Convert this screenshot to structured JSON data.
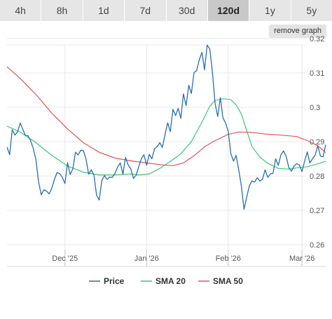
{
  "tabs": [
    {
      "label": "4h",
      "active": false
    },
    {
      "label": "8h",
      "active": false
    },
    {
      "label": "1d",
      "active": false
    },
    {
      "label": "7d",
      "active": false
    },
    {
      "label": "30d",
      "active": false
    },
    {
      "label": "120d",
      "active": true
    },
    {
      "label": "1y",
      "active": false
    },
    {
      "label": "5y",
      "active": false
    }
  ],
  "remove_graph_label": "remove graph",
  "chart_data": {
    "type": "line",
    "ylim": [
      0.26,
      0.32
    ],
    "y_ticks": [
      0.26,
      0.27,
      0.28,
      0.29,
      0.3,
      0.31,
      0.32
    ],
    "y_tick_labels": [
      "0.26",
      "0.27",
      "0.28",
      "0.29",
      "0.3",
      "0.31",
      "0.32"
    ],
    "x_ticks": [
      {
        "label": "Dec '25",
        "date": "2025-12-01"
      },
      {
        "label": "Jan '26",
        "date": "2026-01-01"
      },
      {
        "label": "Feb '26",
        "date": "2026-02-01"
      },
      {
        "label": "Mar '26",
        "date": "2026-03-01"
      }
    ],
    "xlim": [
      "2025-11-09",
      "2026-03-10"
    ],
    "grid": true,
    "legend_position": "bottom",
    "series": [
      {
        "name": "Price",
        "color": "#2b6fa8",
        "points": [
          [
            "2025-11-09",
            0.2884
          ],
          [
            "2025-11-10",
            0.2862
          ],
          [
            "2025-11-11",
            0.2935
          ],
          [
            "2025-11-12",
            0.2919
          ],
          [
            "2025-11-13",
            0.2928
          ],
          [
            "2025-11-14",
            0.2954
          ],
          [
            "2025-11-15",
            0.2936
          ],
          [
            "2025-11-16",
            0.2918
          ],
          [
            "2025-11-17",
            0.2917
          ],
          [
            "2025-11-18",
            0.2902
          ],
          [
            "2025-11-19",
            0.288
          ],
          [
            "2025-11-20",
            0.2846
          ],
          [
            "2025-11-21",
            0.2782
          ],
          [
            "2025-11-22",
            0.2745
          ],
          [
            "2025-11-23",
            0.276
          ],
          [
            "2025-11-24",
            0.2756
          ],
          [
            "2025-11-25",
            0.2748
          ],
          [
            "2025-11-26",
            0.2764
          ],
          [
            "2025-11-27",
            0.279
          ],
          [
            "2025-11-28",
            0.281
          ],
          [
            "2025-11-29",
            0.2807
          ],
          [
            "2025-11-30",
            0.2796
          ],
          [
            "2025-12-01",
            0.2778
          ],
          [
            "2025-12-02",
            0.2839
          ],
          [
            "2025-12-03",
            0.2804
          ],
          [
            "2025-12-04",
            0.2821
          ],
          [
            "2025-12-05",
            0.2869
          ],
          [
            "2025-12-06",
            0.2861
          ],
          [
            "2025-12-07",
            0.2875
          ],
          [
            "2025-12-08",
            0.2874
          ],
          [
            "2025-12-09",
            0.2849
          ],
          [
            "2025-12-10",
            0.2805
          ],
          [
            "2025-12-11",
            0.2818
          ],
          [
            "2025-12-12",
            0.2803
          ],
          [
            "2025-12-13",
            0.2744
          ],
          [
            "2025-12-14",
            0.273
          ],
          [
            "2025-12-15",
            0.2787
          ],
          [
            "2025-12-16",
            0.2801
          ],
          [
            "2025-12-17",
            0.279
          ],
          [
            "2025-12-18",
            0.2797
          ],
          [
            "2025-12-19",
            0.2796
          ],
          [
            "2025-12-20",
            0.2808
          ],
          [
            "2025-12-21",
            0.2826
          ],
          [
            "2025-12-22",
            0.2838
          ],
          [
            "2025-12-23",
            0.2805
          ],
          [
            "2025-12-24",
            0.2854
          ],
          [
            "2025-12-25",
            0.2832
          ],
          [
            "2025-12-26",
            0.2821
          ],
          [
            "2025-12-27",
            0.2793
          ],
          [
            "2025-12-28",
            0.2802
          ],
          [
            "2025-12-29",
            0.2827
          ],
          [
            "2025-12-30",
            0.285
          ],
          [
            "2025-12-31",
            0.2862
          ],
          [
            "2026-01-01",
            0.2831
          ],
          [
            "2026-01-02",
            0.2863
          ],
          [
            "2026-01-03",
            0.285
          ],
          [
            "2026-01-04",
            0.2879
          ],
          [
            "2026-01-05",
            0.2885
          ],
          [
            "2026-01-06",
            0.2897
          ],
          [
            "2026-01-07",
            0.2883
          ],
          [
            "2026-01-08",
            0.2921
          ],
          [
            "2026-01-09",
            0.2955
          ],
          [
            "2026-01-10",
            0.2929
          ],
          [
            "2026-01-11",
            0.2994
          ],
          [
            "2026-01-12",
            0.2976
          ],
          [
            "2026-01-13",
            0.2997
          ],
          [
            "2026-01-14",
            0.2968
          ],
          [
            "2026-01-15",
            0.3039
          ],
          [
            "2026-01-16",
            0.3005
          ],
          [
            "2026-01-17",
            0.3064
          ],
          [
            "2026-01-18",
            0.304
          ],
          [
            "2026-01-19",
            0.3101
          ],
          [
            "2026-01-20",
            0.3107
          ],
          [
            "2026-01-21",
            0.3138
          ],
          [
            "2026-01-22",
            0.316
          ],
          [
            "2026-01-23",
            0.3109
          ],
          [
            "2026-01-24",
            0.3181
          ],
          [
            "2026-01-25",
            0.317
          ],
          [
            "2026-01-26",
            0.3102
          ],
          [
            "2026-01-27",
            0.3011
          ],
          [
            "2026-01-28",
            0.2973
          ],
          [
            "2026-01-29",
            0.3028
          ],
          [
            "2026-01-30",
            0.2969
          ],
          [
            "2026-01-31",
            0.2954
          ],
          [
            "2026-02-01",
            0.2929
          ],
          [
            "2026-02-02",
            0.2865
          ],
          [
            "2026-02-03",
            0.2843
          ],
          [
            "2026-02-04",
            0.286
          ],
          [
            "2026-02-05",
            0.2817
          ],
          [
            "2026-02-06",
            0.2769
          ],
          [
            "2026-02-07",
            0.2703
          ],
          [
            "2026-02-08",
            0.2738
          ],
          [
            "2026-02-09",
            0.2771
          ],
          [
            "2026-02-10",
            0.2786
          ],
          [
            "2026-02-11",
            0.2782
          ],
          [
            "2026-02-12",
            0.2795
          ],
          [
            "2026-02-13",
            0.2785
          ],
          [
            "2026-02-14",
            0.2791
          ],
          [
            "2026-02-15",
            0.2818
          ],
          [
            "2026-02-16",
            0.2796
          ],
          [
            "2026-02-17",
            0.2806
          ],
          [
            "2026-02-18",
            0.2808
          ],
          [
            "2026-02-19",
            0.285
          ],
          [
            "2026-02-20",
            0.2831
          ],
          [
            "2026-02-21",
            0.2862
          ],
          [
            "2026-02-22",
            0.2873
          ],
          [
            "2026-02-23",
            0.2857
          ],
          [
            "2026-02-24",
            0.2824
          ],
          [
            "2026-02-25",
            0.2814
          ],
          [
            "2026-02-26",
            0.2829
          ],
          [
            "2026-02-27",
            0.2836
          ],
          [
            "2026-02-28",
            0.2832
          ],
          [
            "2026-03-01",
            0.2813
          ],
          [
            "2026-03-02",
            0.2843
          ],
          [
            "2026-03-03",
            0.287
          ],
          [
            "2026-03-04",
            0.2838
          ],
          [
            "2026-03-05",
            0.285
          ],
          [
            "2026-03-06",
            0.2861
          ],
          [
            "2026-03-07",
            0.2888
          ],
          [
            "2026-03-08",
            0.2858
          ],
          [
            "2026-03-09",
            0.2856
          ],
          [
            "2026-03-10",
            0.2891
          ]
        ]
      },
      {
        "name": "SMA 20",
        "color": "#3ec47a",
        "points": [
          [
            "2025-11-09",
            0.2945
          ],
          [
            "2025-11-14",
            0.2928
          ],
          [
            "2025-11-20",
            0.2897
          ],
          [
            "2025-11-26",
            0.286
          ],
          [
            "2025-12-02",
            0.2829
          ],
          [
            "2025-12-08",
            0.2811
          ],
          [
            "2025-12-14",
            0.2803
          ],
          [
            "2025-12-20",
            0.2803
          ],
          [
            "2025-12-26",
            0.2806
          ],
          [
            "2025-12-29",
            0.2803
          ],
          [
            "2026-01-02",
            0.2806
          ],
          [
            "2026-01-06",
            0.2822
          ],
          [
            "2026-01-10",
            0.2842
          ],
          [
            "2026-01-14",
            0.2865
          ],
          [
            "2026-01-18",
            0.29
          ],
          [
            "2026-01-22",
            0.2957
          ],
          [
            "2026-01-25",
            0.3003
          ],
          [
            "2026-01-27",
            0.302
          ],
          [
            "2026-01-30",
            0.3025
          ],
          [
            "2026-02-02",
            0.3022
          ],
          [
            "2026-02-04",
            0.3007
          ],
          [
            "2026-02-06",
            0.298
          ],
          [
            "2026-02-08",
            0.2932
          ],
          [
            "2026-02-10",
            0.2886
          ],
          [
            "2026-02-13",
            0.2855
          ],
          [
            "2026-02-16",
            0.2837
          ],
          [
            "2026-02-20",
            0.2822
          ],
          [
            "2026-02-24",
            0.282
          ],
          [
            "2026-02-28",
            0.2825
          ],
          [
            "2026-03-03",
            0.2827
          ],
          [
            "2026-03-06",
            0.2833
          ],
          [
            "2026-03-10",
            0.2843
          ]
        ]
      },
      {
        "name": "SMA 50",
        "color": "#e05555",
        "points": [
          [
            "2025-11-09",
            0.3118
          ],
          [
            "2025-11-14",
            0.3084
          ],
          [
            "2025-11-20",
            0.3037
          ],
          [
            "2025-11-26",
            0.2983
          ],
          [
            "2025-12-02",
            0.2937
          ],
          [
            "2025-12-08",
            0.2897
          ],
          [
            "2025-12-14",
            0.2869
          ],
          [
            "2025-12-20",
            0.2852
          ],
          [
            "2025-12-26",
            0.2844
          ],
          [
            "2026-01-01",
            0.2838
          ],
          [
            "2026-01-07",
            0.2832
          ],
          [
            "2026-01-11",
            0.283
          ],
          [
            "2026-01-15",
            0.2838
          ],
          [
            "2026-01-19",
            0.2859
          ],
          [
            "2026-01-23",
            0.2885
          ],
          [
            "2026-01-27",
            0.2903
          ],
          [
            "2026-02-01",
            0.2921
          ],
          [
            "2026-02-05",
            0.2928
          ],
          [
            "2026-02-10",
            0.2927
          ],
          [
            "2026-02-15",
            0.2922
          ],
          [
            "2026-02-21",
            0.2919
          ],
          [
            "2026-02-27",
            0.2915
          ],
          [
            "2026-03-03",
            0.2903
          ],
          [
            "2026-03-07",
            0.2888
          ],
          [
            "2026-03-10",
            0.2868
          ]
        ]
      }
    ]
  }
}
